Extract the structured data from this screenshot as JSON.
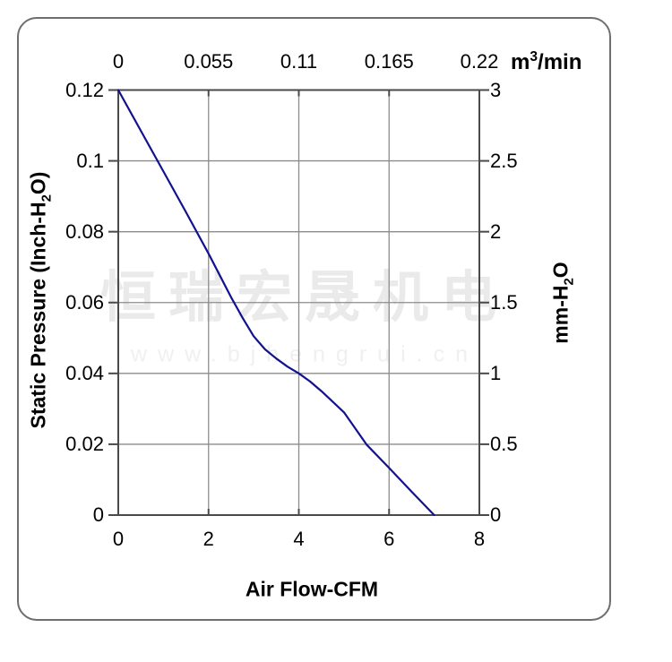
{
  "page": {
    "background": "#ffffff",
    "frame_border_color": "#6e6e6e"
  },
  "watermark": {
    "line1": "恒瑞宏晟机电",
    "line2": "www.bjhengrui.cn"
  },
  "chart_data": {
    "type": "line",
    "title": "",
    "grid": true,
    "legend": false,
    "x_axis_bottom": {
      "label": "Air Flow-CFM",
      "tick_labels": [
        "0",
        "2",
        "4",
        "6",
        "8"
      ],
      "range": [
        0,
        8
      ]
    },
    "x_axis_top": {
      "tick_labels": [
        "0",
        "0.055",
        "0.11",
        "0.165",
        "0.22"
      ],
      "unit_prefix": "m",
      "unit_sup": "3",
      "unit_suffix": "/min",
      "range": [
        0,
        0.22
      ]
    },
    "y_axis_left": {
      "label_prefix": "Static Pressure (Inch-H",
      "label_sub": "2",
      "label_suffix": "O)",
      "tick_labels": [
        "0.12",
        "0.1",
        "0.08",
        "0.06",
        "0.04",
        "0.02",
        "0"
      ],
      "range": [
        0,
        0.12
      ]
    },
    "y_axis_right": {
      "label_prefix": "mm-H",
      "label_sub": "2",
      "label_suffix": "O",
      "tick_labels": [
        "3",
        "2.5",
        "2",
        "1.5",
        "1",
        "0.5",
        "0"
      ],
      "range": [
        0,
        3
      ]
    },
    "colors": {
      "curve": "#12128e",
      "grid": "#8c8c8c",
      "plot_border": "#4a4a4a",
      "text": "#000000",
      "watermark_cn": "#eaeaea",
      "watermark_url": "#f0f0f0"
    },
    "series": [
      {
        "name": "static-pressure-vs-airflow",
        "points": [
          [
            0,
            0.12
          ],
          [
            0.5,
            0.1085
          ],
          [
            1,
            0.097
          ],
          [
            1.5,
            0.0855
          ],
          [
            2,
            0.0738
          ],
          [
            2.5,
            0.0615
          ],
          [
            2.75,
            0.0558
          ],
          [
            3,
            0.0505
          ],
          [
            3.25,
            0.0468
          ],
          [
            3.5,
            0.0442
          ],
          [
            3.75,
            0.0419
          ],
          [
            4,
            0.04
          ],
          [
            4.25,
            0.0377
          ],
          [
            4.5,
            0.035
          ],
          [
            5,
            0.029
          ],
          [
            5.5,
            0.0199
          ],
          [
            6,
            0.0133
          ],
          [
            6.5,
            0.0066
          ],
          [
            7,
            0
          ]
        ]
      }
    ]
  }
}
